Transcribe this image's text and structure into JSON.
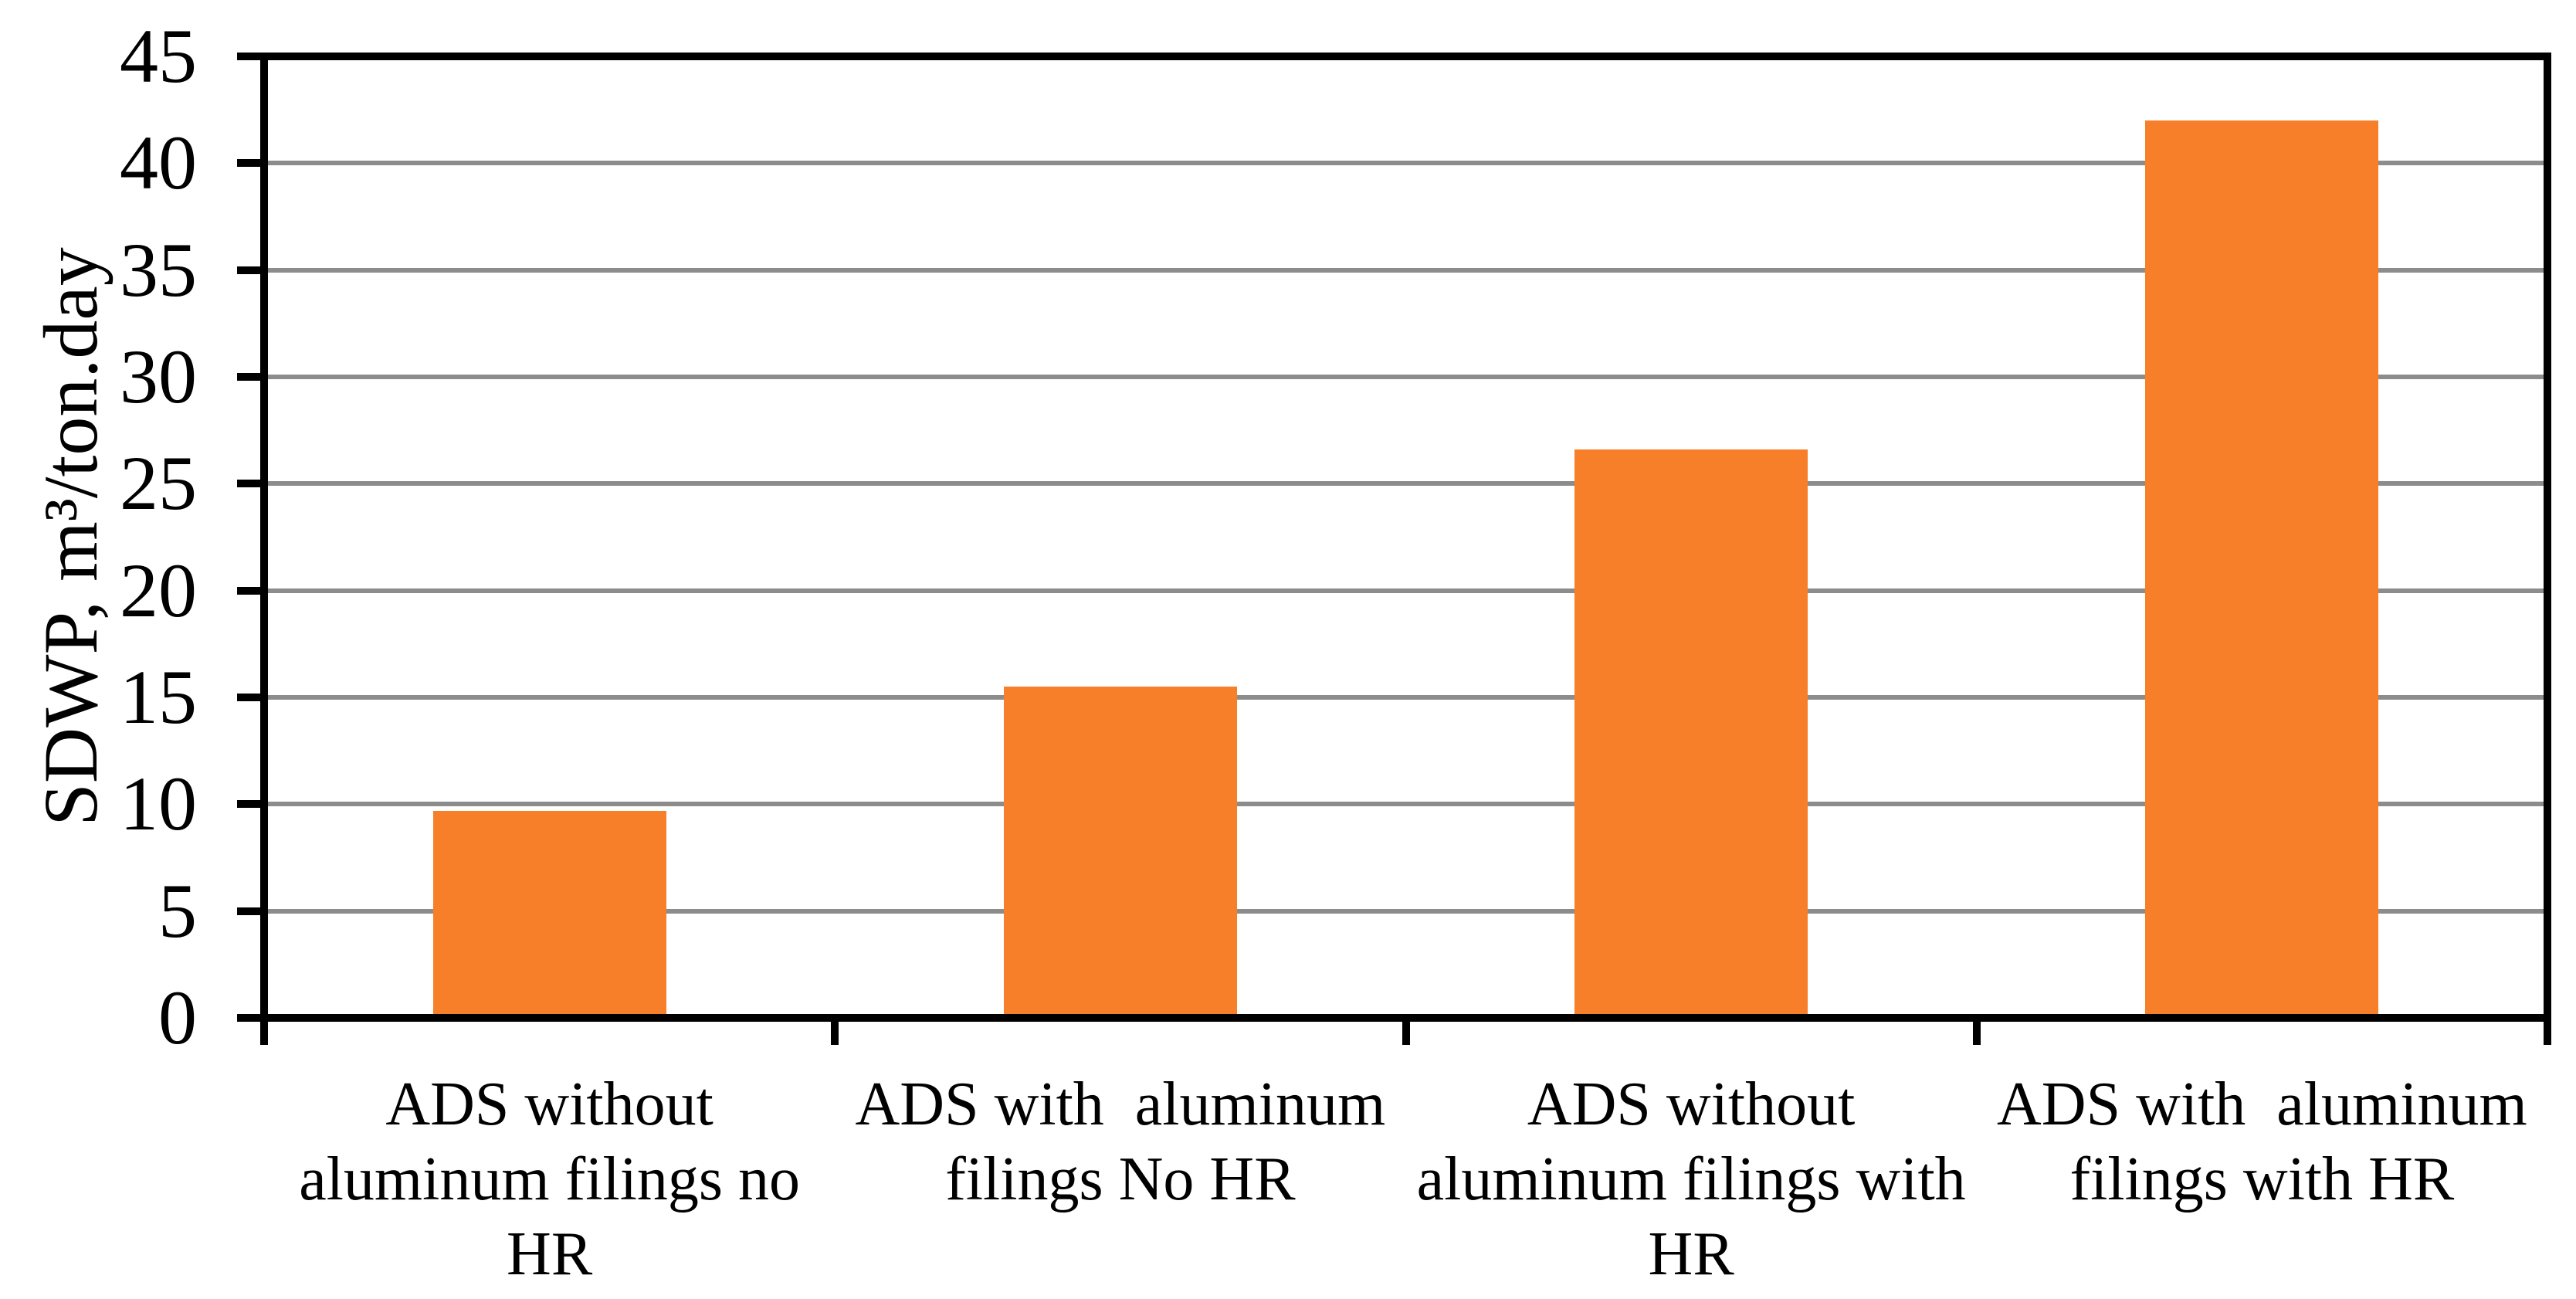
{
  "chart_data": {
    "type": "bar",
    "title": "",
    "xlabel": "",
    "ylabel": "SDWP, m³/ton.day",
    "ylim": [
      0,
      45
    ],
    "yticks": [
      0,
      5,
      10,
      15,
      20,
      25,
      30,
      35,
      40,
      45
    ],
    "grid": true,
    "legend": "none",
    "categories": [
      [
        "ADS without",
        "aluminum filings no",
        "HR"
      ],
      [
        "ADS with  aluminum",
        "filings No HR"
      ],
      [
        "ADS without",
        "aluminum filings with",
        "HR"
      ],
      [
        "ADS with  aluminum",
        "filings with HR"
      ]
    ],
    "values": [
      9.7,
      15.5,
      26.6,
      42
    ],
    "bar_color": "#F87F29",
    "gridline_color": "#8C8C8C",
    "axis_color": "#000000",
    "text_color": "#000000",
    "background_color": "#FFFFFF"
  }
}
